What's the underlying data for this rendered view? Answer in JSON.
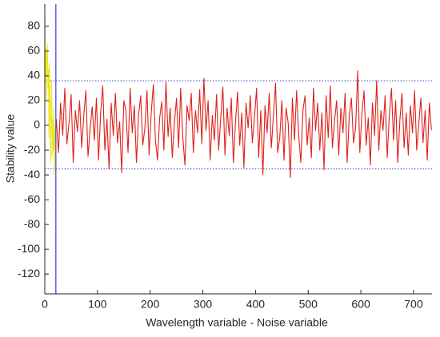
{
  "chart_data": {
    "type": "line",
    "xlabel": "Wavelength variable - Noise variable",
    "ylabel": "Stability value",
    "xlim": [
      0,
      735
    ],
    "ylim": [
      -136,
      98
    ],
    "xticks": [
      0,
      100,
      200,
      300,
      400,
      500,
      600,
      700
    ],
    "yticks": [
      -120,
      -100,
      -80,
      -60,
      -40,
      -20,
      0,
      20,
      40,
      60,
      80
    ],
    "reference_lines": {
      "y": [
        36,
        -35
      ],
      "y_color": "#3a3ad8",
      "x": 21,
      "x_color": "#3a3ad8"
    },
    "series": [
      {
        "color": "#e8e820",
        "x": [
          0,
          1,
          2,
          3,
          4,
          5,
          6,
          7,
          8,
          9,
          10,
          11,
          12,
          13,
          14,
          15,
          16,
          17,
          18,
          19,
          20
        ],
        "values": [
          88,
          40,
          62,
          20,
          55,
          65,
          30,
          45,
          -10,
          50,
          25,
          -30,
          10,
          35,
          -25,
          5,
          -20,
          15,
          -40,
          -10,
          0
        ]
      },
      {
        "color": "#e0201a",
        "x": [
          22,
          26,
          30,
          34,
          38,
          42,
          46,
          50,
          54,
          58,
          62,
          66,
          70,
          74,
          78,
          82,
          86,
          90,
          94,
          98,
          102,
          106,
          110,
          114,
          118,
          122,
          126,
          130,
          134,
          138,
          142,
          146,
          150,
          154,
          158,
          162,
          166,
          170,
          174,
          178,
          182,
          186,
          190,
          194,
          198,
          202,
          206,
          210,
          214,
          218,
          222,
          226,
          230,
          234,
          238,
          242,
          246,
          250,
          254,
          258,
          262,
          266,
          270,
          274,
          278,
          282,
          286,
          290,
          294,
          298,
          302,
          306,
          310,
          314,
          318,
          322,
          326,
          330,
          334,
          338,
          342,
          346,
          350,
          354,
          358,
          362,
          366,
          370,
          374,
          378,
          382,
          386,
          390,
          394,
          398,
          402,
          406,
          410,
          414,
          418,
          422,
          426,
          430,
          434,
          438,
          442,
          446,
          450,
          454,
          458,
          462,
          466,
          470,
          474,
          478,
          482,
          486,
          490,
          494,
          498,
          502,
          506,
          510,
          514,
          518,
          522,
          526,
          530,
          534,
          538,
          542,
          546,
          550,
          554,
          558,
          562,
          566,
          570,
          574,
          578,
          582,
          586,
          590,
          594,
          598,
          602,
          606,
          610,
          614,
          618,
          622,
          626,
          630,
          634,
          638,
          642,
          646,
          650,
          654,
          658,
          662,
          666,
          670,
          674,
          678,
          682,
          686,
          690,
          694,
          698,
          702,
          706,
          710,
          714,
          718,
          722,
          726,
          730,
          734
        ],
        "values": [
          5,
          -22,
          18,
          -8,
          30,
          -15,
          2,
          25,
          -30,
          12,
          -5,
          20,
          -18,
          8,
          28,
          -25,
          -3,
          15,
          -12,
          22,
          -28,
          10,
          32,
          -20,
          5,
          -35,
          18,
          -8,
          26,
          -14,
          3,
          -38,
          20,
          12,
          -22,
          30,
          -6,
          16,
          -30,
          8,
          24,
          -16,
          -2,
          28,
          -24,
          10,
          33,
          -12,
          -28,
          6,
          19,
          -20,
          35,
          -9,
          14,
          -26,
          2,
          22,
          -18,
          30,
          -10,
          -32,
          16,
          4,
          26,
          -22,
          12,
          -6,
          29,
          -15,
          38,
          -4,
          20,
          -28,
          8,
          -12,
          25,
          -20,
          6,
          31,
          -24,
          14,
          -8,
          22,
          -30,
          3,
          27,
          -16,
          10,
          -34,
          18,
          -2,
          24,
          -14,
          6,
          30,
          -26,
          12,
          -40,
          16,
          -6,
          26,
          -18,
          8,
          34,
          -22,
          -10,
          20,
          -28,
          14,
          2,
          -42,
          22,
          -12,
          28,
          -8,
          -30,
          12,
          24,
          -16,
          6,
          -26,
          30,
          -4,
          18,
          -20,
          10,
          -36,
          24,
          -10,
          32,
          -18,
          4,
          20,
          -24,
          14,
          -6,
          26,
          -30,
          8,
          22,
          -14,
          -2,
          44,
          -22,
          10,
          28,
          -16,
          6,
          -32,
          18,
          -8,
          36,
          -20,
          12,
          -4,
          24,
          -26,
          8,
          30,
          -12,
          20,
          -30,
          4,
          26,
          -18,
          10,
          -24,
          16,
          -6,
          28,
          -20,
          2,
          22,
          -14,
          12,
          -28,
          18,
          -4
        ]
      }
    ]
  }
}
